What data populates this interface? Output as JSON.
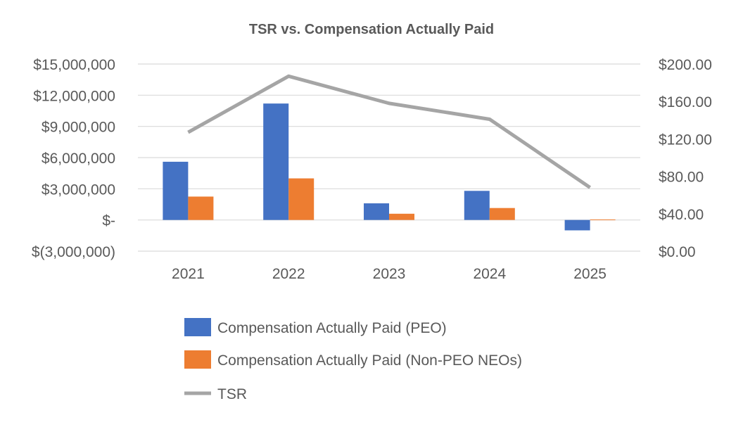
{
  "chart_data": {
    "type": "bar",
    "title": "TSR vs. Compensation Actually Paid",
    "categories": [
      "2021",
      "2022",
      "2023",
      "2024",
      "2025"
    ],
    "series": [
      {
        "name": "Compensation Actually Paid (PEO)",
        "type": "bar",
        "axis": "left",
        "color": "#4472C4",
        "values": [
          5600000,
          11200000,
          1600000,
          2800000,
          -1000000
        ]
      },
      {
        "name": "Compensation Actually Paid (Non-PEO NEOs)",
        "type": "bar",
        "axis": "left",
        "color": "#ED7D31",
        "values": [
          2250000,
          4000000,
          600000,
          1150000,
          50000
        ]
      },
      {
        "name": "TSR",
        "type": "line",
        "axis": "right",
        "color": "#A5A5A5",
        "values": [
          127,
          187,
          158,
          141,
          68
        ]
      }
    ],
    "y_left": {
      "min": -3000000,
      "max": 15000000,
      "ticks": [
        15000000,
        12000000,
        9000000,
        6000000,
        3000000,
        0,
        -3000000
      ],
      "tick_labels": [
        "$15,000,000",
        "$12,000,000",
        "$9,000,000",
        "$6,000,000",
        "$3,000,000",
        "$-",
        "$(3,000,000)"
      ]
    },
    "y_right": {
      "min": 0,
      "max": 200,
      "ticks": [
        200,
        160,
        120,
        80,
        40,
        0
      ],
      "tick_labels": [
        "$200.00",
        "$160.00",
        "$120.00",
        "$80.00",
        "$40.00",
        "$0.00"
      ]
    },
    "grid": true,
    "legend_position": "bottom"
  }
}
